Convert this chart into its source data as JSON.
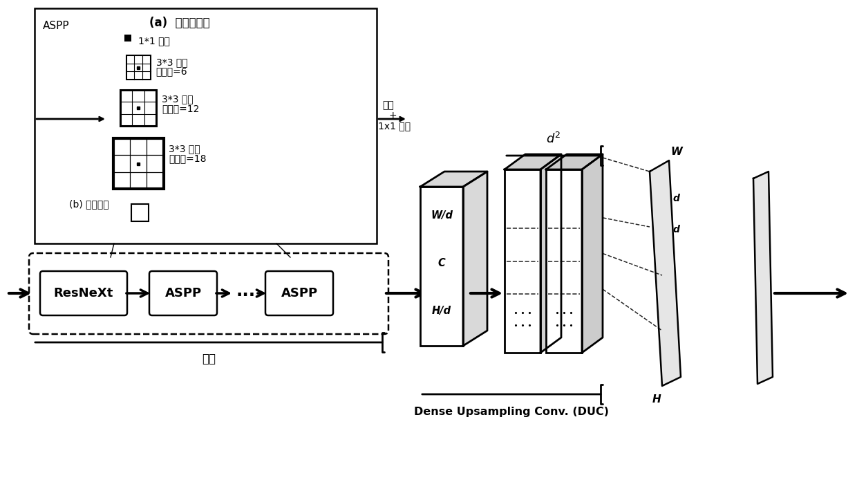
{
  "bg_color": "#ffffff",
  "aspp_label": "ASPP",
  "aspp_a_title": "(a)  多尺度卷积",
  "conv1_label": "1*1 卷积",
  "conv3_6_line1": "3*3 卷积",
  "conv3_6_line2": "膨胀率=6",
  "conv3_12_line1": "3*3 卷积",
  "conv3_12_line2": "膨胀率=12",
  "conv3_18_line1": "3*3 卷积",
  "conv3_18_line2": "膨胀率=18",
  "concat_line1": "串联",
  "concat_line2": "+",
  "concat_line3": "1x1 卷积",
  "pool_label": "(b) 图像池化",
  "encoder_label": "编码",
  "duc_label": "Dense Upsampling Conv. (DUC)",
  "box_resnext": "ResNeXt",
  "box_aspp1": "ASPP",
  "box_dots": "···",
  "box_aspp2": "ASPP",
  "vol_label_wd": "W/d",
  "vol_label_c": "C",
  "vol_label_hd": "H/d",
  "vol2_label": "$d^2$",
  "plane_label_w": "W",
  "plane_label_h": "H",
  "plane_label_d1": "d",
  "plane_label_d2": "d"
}
